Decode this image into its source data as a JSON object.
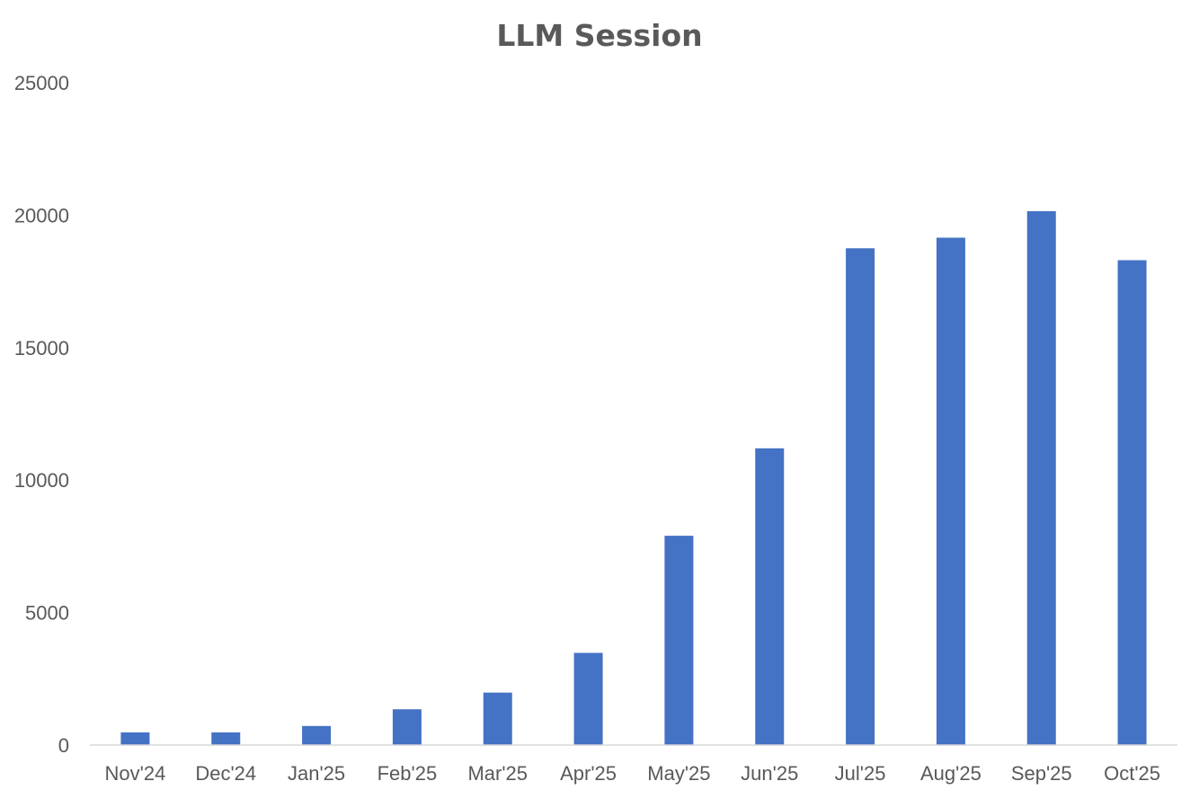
{
  "chart_data": {
    "type": "bar",
    "title": "LLM Session",
    "xlabel": "",
    "ylabel": "",
    "categories": [
      "Nov'24",
      "Dec'24",
      "Jan'25",
      "Feb'25",
      "Mar'25",
      "Apr'25",
      "May'25",
      "Jun'25",
      "Jul'25",
      "Aug'25",
      "Sep'25",
      "Oct'25"
    ],
    "values": [
      480,
      480,
      720,
      1350,
      1980,
      3480,
      7900,
      11200,
      18750,
      19150,
      20150,
      18300
    ],
    "ylim": [
      0,
      25000
    ],
    "yticks": [
      "0",
      "5000",
      "10000",
      "15000",
      "20000",
      "25000"
    ],
    "grid": false,
    "legend": "none",
    "bar_color": "#4472C4",
    "axis_color": "#D9D9D9",
    "text_color": "#595959"
  }
}
